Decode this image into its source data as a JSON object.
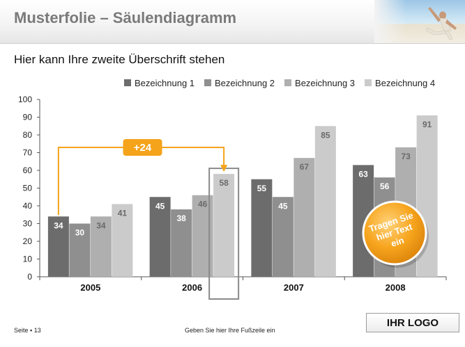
{
  "header": {
    "title": "Musterfolie – Säulendiagramm",
    "subtitle": "Hier kann Ihre zweite Überschrift stehen"
  },
  "footer": {
    "page": "Seite ▪ 13",
    "text": "Geben Sie hier Ihre Fußzeile ein",
    "logo": "IHR LOGO"
  },
  "callouts": {
    "delta": "+24",
    "badge": "Tragen Sie hier Text ein"
  },
  "colors": {
    "accent": "#f5a31a",
    "series": [
      "#6c6c6c",
      "#8f8f8f",
      "#afafaf",
      "#cbcbcb"
    ]
  },
  "chart_data": {
    "type": "bar",
    "categories": [
      "2005",
      "2006",
      "2007",
      "2008"
    ],
    "series": [
      {
        "name": "Bezeichnung 1",
        "values": [
          34,
          45,
          55,
          63
        ]
      },
      {
        "name": "Bezeichnung 2",
        "values": [
          30,
          38,
          45,
          56
        ]
      },
      {
        "name": "Bezeichnung 3",
        "values": [
          34,
          46,
          67,
          73
        ]
      },
      {
        "name": "Bezeichnung 4",
        "values": [
          41,
          58,
          85,
          91
        ]
      }
    ],
    "ylim": [
      0,
      100
    ],
    "yticks": [
      0,
      10,
      20,
      30,
      40,
      50,
      60,
      70,
      80,
      90,
      100
    ],
    "grid": false,
    "legend": "top-right",
    "highlight": {
      "category": "2006",
      "series": "Bezeichnung 4"
    },
    "comparison": {
      "from": {
        "category": "2005",
        "series": "Bezeichnung 1"
      },
      "to": {
        "category": "2006",
        "series": "Bezeichnung 4"
      }
    }
  }
}
